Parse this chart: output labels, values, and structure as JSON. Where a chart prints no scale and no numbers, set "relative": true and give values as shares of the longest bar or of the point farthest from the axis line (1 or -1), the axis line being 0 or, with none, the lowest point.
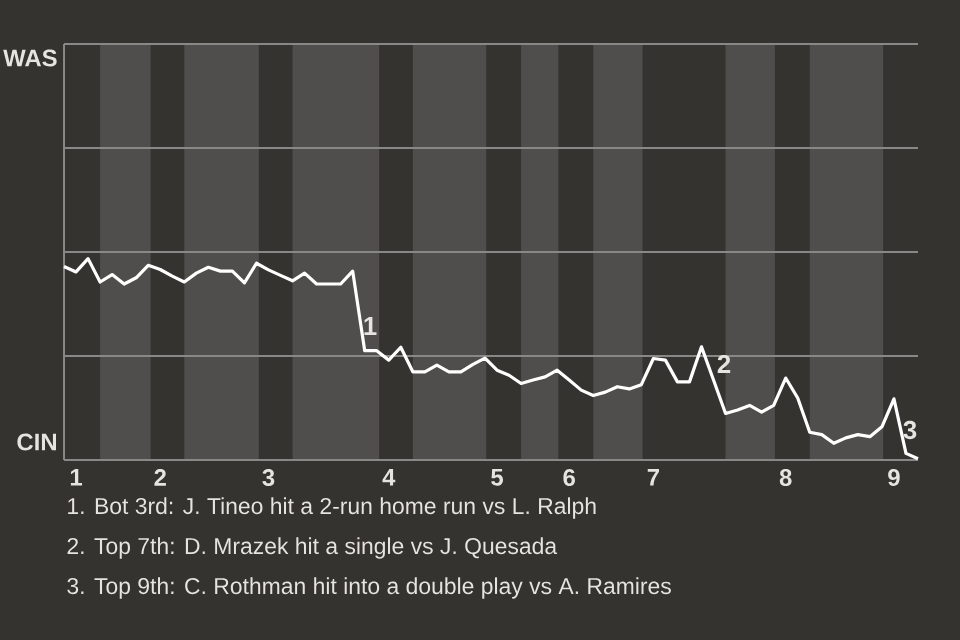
{
  "chart_data": {
    "type": "line",
    "relative": true,
    "categories": [
      null,
      "1",
      null,
      null,
      null,
      null,
      null,
      null,
      "2",
      null,
      null,
      null,
      null,
      null,
      null,
      null,
      null,
      "3",
      null,
      null,
      null,
      null,
      null,
      null,
      null,
      null,
      null,
      "4",
      null,
      null,
      null,
      null,
      null,
      null,
      null,
      null,
      "5",
      null,
      null,
      null,
      null,
      null,
      "6",
      null,
      null,
      null,
      null,
      null,
      null,
      "7",
      null,
      null,
      null,
      null,
      null,
      null,
      null,
      null,
      null,
      null,
      "8",
      null,
      null,
      null,
      null,
      null,
      null,
      null,
      null,
      "9",
      null,
      null
    ],
    "series": [
      {
        "color": "#ffffff",
        "values": [
          0.961,
          0.934,
          1,
          0.884,
          0.921,
          0.874,
          0.905,
          0.967,
          0.946,
          0.913,
          0.884,
          0.928,
          0.957,
          0.938,
          0.938,
          0.88,
          0.977,
          0.944,
          0.917,
          0.89,
          0.928,
          0.874,
          0.874,
          0.874,
          0.938,
          0.543,
          0.543,
          0.496,
          0.56,
          0.438,
          0.438,
          0.471,
          0.438,
          0.438,
          0.475,
          0.506,
          0.446,
          0.421,
          0.38,
          0.397,
          0.413,
          0.446,
          0.397,
          0.347,
          0.32,
          0.337,
          0.364,
          0.353,
          0.374,
          0.504,
          0.496,
          0.388,
          0.388,
          0.562,
          0.397,
          0.231,
          0.248,
          0.271,
          0.238,
          0.271,
          0.407,
          0.308,
          0.138,
          0.126,
          0.083,
          0.11,
          0.126,
          0.116,
          0.165,
          0.304,
          0.033,
          0.006
        ]
      }
    ],
    "ref_lines": [
      {
        "axis": "y",
        "value": 0.516,
        "color": "#8a8886"
      }
    ],
    "annotations": [
      "WAS",
      "CIN",
      "1",
      "2",
      "3",
      "1. Bot 3rd: J. Tineo hit a 2-run home run vs L. Ralph",
      "2. Top 7th: D. Mrazek hit a single vs J. Quesada",
      "3. Top 9th: C. Rothman hit into a double play vs A. Ramires"
    ]
  }
}
